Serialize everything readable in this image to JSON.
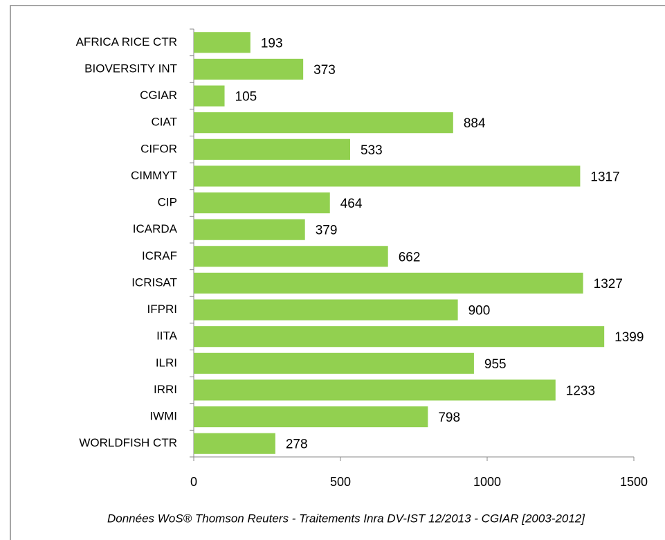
{
  "chart_data": {
    "type": "bar",
    "orientation": "horizontal",
    "categories": [
      "AFRICA RICE CTR",
      "BIOVERSITY INT",
      "CGIAR",
      "CIAT",
      "CIFOR",
      "CIMMYT",
      "CIP",
      "ICARDA",
      "ICRAF",
      "ICRISAT",
      "IFPRI",
      "IITA",
      "ILRI",
      "IRRI",
      "IWMI",
      "WORLDFISH CTR"
    ],
    "values": [
      193,
      373,
      105,
      884,
      533,
      1317,
      464,
      379,
      662,
      1327,
      900,
      1399,
      955,
      1233,
      798,
      278
    ],
    "color": "#92d050",
    "xlim": [
      0,
      1500
    ],
    "xticks": [
      0,
      500,
      1000,
      1500
    ],
    "annotation": "Données WoS® Thomson Reuters - Traitements Inra DV-IST 12/2013 -  CGIAR [2003-2012]"
  }
}
